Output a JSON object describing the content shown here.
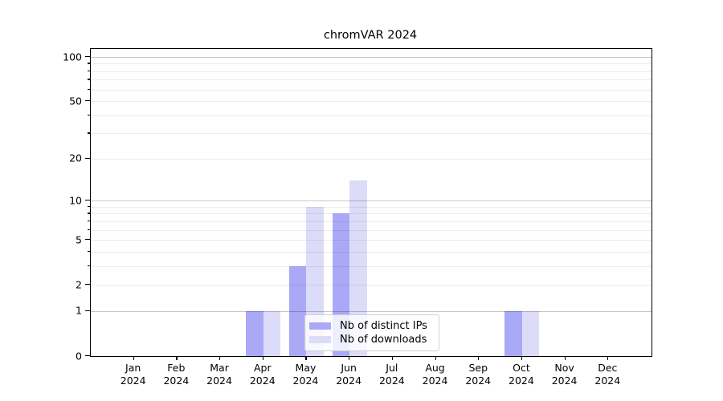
{
  "title": "chromVAR 2024",
  "colors": {
    "distinct_ips_bar": "#a9a9f7",
    "downloads_bar": "#dcdcf9",
    "grid_major": "rgba(0,0,0,0.22)",
    "grid_minor": "rgba(0,0,0,0.075)",
    "axis_line": "#000000",
    "legend_border": "#d0d0d0",
    "background": "#ffffff"
  },
  "legend": {
    "items": [
      {
        "label": "Nb of distinct IPs",
        "color": "#a9a9f7"
      },
      {
        "label": "Nb of downloads",
        "color": "#dcdcf9"
      }
    ]
  },
  "x_axis": {
    "months": [
      "Jan",
      "Feb",
      "Mar",
      "Apr",
      "May",
      "Jun",
      "Jul",
      "Aug",
      "Sep",
      "Oct",
      "Nov",
      "Dec"
    ],
    "year": "2024"
  },
  "y_axis": {
    "tick_values": [
      0,
      1,
      2,
      5,
      10,
      20,
      50,
      100
    ]
  },
  "chart_data": {
    "type": "bar",
    "title": "chromVAR 2024",
    "categories": [
      "Jan 2024",
      "Feb 2024",
      "Mar 2024",
      "Apr 2024",
      "May 2024",
      "Jun 2024",
      "Jul 2024",
      "Aug 2024",
      "Sep 2024",
      "Oct 2024",
      "Nov 2024",
      "Dec 2024"
    ],
    "series": [
      {
        "name": "Nb of distinct IPs",
        "color": "#a9a9f7",
        "values": [
          0,
          0,
          0,
          1,
          3,
          8,
          0,
          0,
          0,
          1,
          0,
          0
        ]
      },
      {
        "name": "Nb of downloads",
        "color": "#dcdcf9",
        "values": [
          0,
          0,
          0,
          1,
          9,
          14,
          0,
          0,
          0,
          1,
          0,
          0
        ]
      }
    ],
    "y_scale": "log1p",
    "ylim": [
      0,
      113
    ],
    "y_major_ticks": [
      0,
      1,
      2,
      5,
      10,
      20,
      50,
      100
    ],
    "y_major_gridlines": [
      1,
      10,
      100
    ],
    "y_minor_gridlines": [
      2,
      3,
      4,
      5,
      6,
      7,
      8,
      9,
      20,
      30,
      40,
      50,
      60,
      70,
      80,
      90
    ],
    "grid": true,
    "legend_position": "lower center inside plot"
  }
}
